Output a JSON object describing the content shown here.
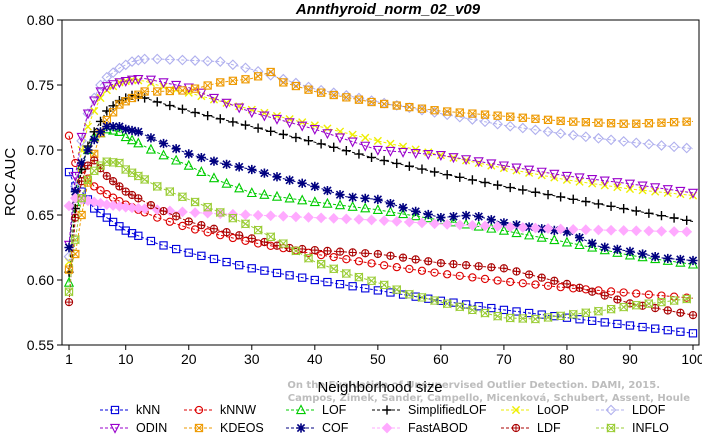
{
  "chart_data": {
    "type": "line",
    "title": "Annthyroid_norm_02_v09",
    "xlabel": "Neighborhood size",
    "ylabel": "ROC AUC",
    "xlim": [
      1,
      100
    ],
    "ylim": [
      0.55,
      0.8
    ],
    "xticks": [
      "1",
      "10",
      "20",
      "30",
      "40",
      "50",
      "60",
      "70",
      "80",
      "90",
      "100"
    ],
    "yticks": [
      "0.55",
      "0.60",
      "0.65",
      "0.70",
      "0.75",
      "0.80"
    ],
    "grid": false,
    "legend_position": "bottom",
    "watermark": "Campos, Zimek, Sander, Campello, Micenková, Schubert, Assent, Houle\nOn the Evaluation of Unsupervised Outlier Detection. DAMI, 2015.",
    "series": [
      {
        "name": "kNN",
        "color": "#0000dd",
        "marker": "square",
        "points": [
          [
            1,
            0.683
          ],
          [
            2,
            0.672
          ],
          [
            3,
            0.668
          ],
          [
            4,
            0.662
          ],
          [
            5,
            0.655
          ],
          [
            7,
            0.648
          ],
          [
            10,
            0.638
          ],
          [
            15,
            0.628
          ],
          [
            20,
            0.621
          ],
          [
            30,
            0.609
          ],
          [
            40,
            0.6
          ],
          [
            50,
            0.592
          ],
          [
            60,
            0.584
          ],
          [
            70,
            0.577
          ],
          [
            80,
            0.571
          ],
          [
            90,
            0.565
          ],
          [
            100,
            0.559
          ]
        ]
      },
      {
        "name": "kNNW",
        "color": "#dd0000",
        "marker": "circle",
        "points": [
          [
            1,
            0.711
          ],
          [
            2,
            0.69
          ],
          [
            3,
            0.685
          ],
          [
            4,
            0.678
          ],
          [
            5,
            0.672
          ],
          [
            7,
            0.666
          ],
          [
            10,
            0.658
          ],
          [
            15,
            0.648
          ],
          [
            20,
            0.64
          ],
          [
            30,
            0.629
          ],
          [
            40,
            0.62
          ],
          [
            50,
            0.612
          ],
          [
            60,
            0.605
          ],
          [
            70,
            0.599
          ],
          [
            80,
            0.594
          ],
          [
            90,
            0.59
          ],
          [
            100,
            0.586
          ]
        ]
      },
      {
        "name": "LOF",
        "color": "#00cc00",
        "marker": "triangle-up",
        "points": [
          [
            1,
            0.598
          ],
          [
            2,
            0.66
          ],
          [
            3,
            0.688
          ],
          [
            4,
            0.7
          ],
          [
            5,
            0.71
          ],
          [
            6,
            0.713
          ],
          [
            7,
            0.716
          ],
          [
            9,
            0.714
          ],
          [
            10,
            0.71
          ],
          [
            15,
            0.698
          ],
          [
            20,
            0.688
          ],
          [
            25,
            0.676
          ],
          [
            30,
            0.667
          ],
          [
            40,
            0.66
          ],
          [
            50,
            0.654
          ],
          [
            60,
            0.646
          ],
          [
            70,
            0.638
          ],
          [
            80,
            0.629
          ],
          [
            90,
            0.619
          ],
          [
            100,
            0.612
          ]
        ]
      },
      {
        "name": "SimplifiedLOF",
        "color": "#000000",
        "marker": "plus",
        "points": [
          [
            1,
            0.606
          ],
          [
            2,
            0.655
          ],
          [
            3,
            0.685
          ],
          [
            4,
            0.703
          ],
          [
            5,
            0.714
          ],
          [
            6,
            0.722
          ],
          [
            7,
            0.73
          ],
          [
            9,
            0.738
          ],
          [
            11,
            0.742
          ],
          [
            13,
            0.74
          ],
          [
            15,
            0.737
          ],
          [
            20,
            0.73
          ],
          [
            30,
            0.718
          ],
          [
            40,
            0.706
          ],
          [
            50,
            0.693
          ],
          [
            60,
            0.682
          ],
          [
            70,
            0.672
          ],
          [
            80,
            0.663
          ],
          [
            90,
            0.654
          ],
          [
            100,
            0.645
          ]
        ]
      },
      {
        "name": "LoOP",
        "color": "#eeee00",
        "marker": "x",
        "points": [
          [
            1,
            0.614
          ],
          [
            2,
            0.668
          ],
          [
            3,
            0.7
          ],
          [
            4,
            0.718
          ],
          [
            5,
            0.73
          ],
          [
            6,
            0.74
          ],
          [
            7,
            0.746
          ],
          [
            9,
            0.752
          ],
          [
            11,
            0.754
          ],
          [
            13,
            0.753
          ],
          [
            15,
            0.75
          ],
          [
            20,
            0.744
          ],
          [
            30,
            0.731
          ],
          [
            40,
            0.719
          ],
          [
            50,
            0.707
          ],
          [
            60,
            0.696
          ],
          [
            70,
            0.686
          ],
          [
            80,
            0.677
          ],
          [
            90,
            0.67
          ],
          [
            100,
            0.665
          ]
        ]
      },
      {
        "name": "LDOF",
        "color": "#b0b0ee",
        "marker": "diamond",
        "points": [
          [
            1,
            0.618
          ],
          [
            2,
            0.672
          ],
          [
            3,
            0.707
          ],
          [
            4,
            0.728
          ],
          [
            5,
            0.74
          ],
          [
            6,
            0.75
          ],
          [
            7,
            0.756
          ],
          [
            9,
            0.763
          ],
          [
            11,
            0.768
          ],
          [
            13,
            0.77
          ],
          [
            15,
            0.77
          ],
          [
            20,
            0.769
          ],
          [
            25,
            0.768
          ],
          [
            30,
            0.762
          ],
          [
            40,
            0.747
          ],
          [
            50,
            0.737
          ],
          [
            60,
            0.728
          ],
          [
            70,
            0.719
          ],
          [
            80,
            0.712
          ],
          [
            90,
            0.706
          ],
          [
            100,
            0.701
          ]
        ]
      },
      {
        "name": "ODIN",
        "color": "#9900cc",
        "marker": "triangle-down",
        "points": [
          [
            1,
            0.627
          ],
          [
            2,
            0.68
          ],
          [
            3,
            0.71
          ],
          [
            4,
            0.728
          ],
          [
            5,
            0.738
          ],
          [
            6,
            0.745
          ],
          [
            7,
            0.749
          ],
          [
            9,
            0.752
          ],
          [
            11,
            0.754
          ],
          [
            13,
            0.755
          ],
          [
            15,
            0.753
          ],
          [
            20,
            0.748
          ],
          [
            25,
            0.738
          ],
          [
            30,
            0.729
          ],
          [
            40,
            0.716
          ],
          [
            50,
            0.7
          ],
          [
            60,
            0.696
          ],
          [
            70,
            0.688
          ],
          [
            80,
            0.68
          ],
          [
            90,
            0.674
          ],
          [
            100,
            0.667
          ]
        ]
      },
      {
        "name": "KDEOS",
        "color": "#ee9900",
        "marker": "square-x",
        "points": [
          [
            1,
            0.608
          ],
          [
            2,
            0.62
          ],
          [
            3,
            0.65
          ],
          [
            4,
            0.675
          ],
          [
            5,
            0.697
          ],
          [
            6,
            0.713
          ],
          [
            7,
            0.723
          ],
          [
            9,
            0.735
          ],
          [
            11,
            0.74
          ],
          [
            13,
            0.745
          ],
          [
            15,
            0.745
          ],
          [
            20,
            0.746
          ],
          [
            25,
            0.752
          ],
          [
            30,
            0.755
          ],
          [
            33,
            0.76
          ],
          [
            35,
            0.752
          ],
          [
            40,
            0.745
          ],
          [
            50,
            0.736
          ],
          [
            60,
            0.73
          ],
          [
            70,
            0.726
          ],
          [
            80,
            0.722
          ],
          [
            90,
            0.72
          ],
          [
            100,
            0.722
          ]
        ]
      },
      {
        "name": "COF",
        "color": "#000080",
        "marker": "asterisk",
        "points": [
          [
            1,
            0.625
          ],
          [
            2,
            0.668
          ],
          [
            3,
            0.69
          ],
          [
            4,
            0.7
          ],
          [
            5,
            0.708
          ],
          [
            6,
            0.714
          ],
          [
            7,
            0.718
          ],
          [
            9,
            0.718
          ],
          [
            10,
            0.716
          ],
          [
            12,
            0.714
          ],
          [
            15,
            0.707
          ],
          [
            20,
            0.697
          ],
          [
            25,
            0.69
          ],
          [
            30,
            0.685
          ],
          [
            35,
            0.678
          ],
          [
            40,
            0.672
          ],
          [
            45,
            0.664
          ],
          [
            50,
            0.662
          ],
          [
            55,
            0.654
          ],
          [
            60,
            0.648
          ],
          [
            65,
            0.65
          ],
          [
            70,
            0.644
          ],
          [
            75,
            0.64
          ],
          [
            80,
            0.637
          ],
          [
            85,
            0.626
          ],
          [
            90,
            0.622
          ],
          [
            95,
            0.617
          ],
          [
            100,
            0.615
          ]
        ]
      },
      {
        "name": "FastABOD",
        "color": "#ffaaff",
        "marker": "diamond-filled",
        "points": [
          [
            1,
            0.657
          ],
          [
            2,
            0.663
          ],
          [
            3,
            0.662
          ],
          [
            4,
            0.661
          ],
          [
            5,
            0.66
          ],
          [
            7,
            0.658
          ],
          [
            10,
            0.656
          ],
          [
            15,
            0.654
          ],
          [
            20,
            0.652
          ],
          [
            30,
            0.65
          ],
          [
            40,
            0.648
          ],
          [
            50,
            0.646
          ],
          [
            60,
            0.643
          ],
          [
            70,
            0.641
          ],
          [
            80,
            0.639
          ],
          [
            90,
            0.638
          ],
          [
            100,
            0.637
          ]
        ]
      },
      {
        "name": "LDF",
        "color": "#aa0000",
        "marker": "circle-plus",
        "points": [
          [
            1,
            0.583
          ],
          [
            2,
            0.648
          ],
          [
            3,
            0.676
          ],
          [
            4,
            0.688
          ],
          [
            5,
            0.692
          ],
          [
            7,
            0.68
          ],
          [
            10,
            0.668
          ],
          [
            15,
            0.655
          ],
          [
            20,
            0.645
          ],
          [
            25,
            0.638
          ],
          [
            30,
            0.632
          ],
          [
            35,
            0.625
          ],
          [
            40,
            0.623
          ],
          [
            50,
            0.62
          ],
          [
            60,
            0.613
          ],
          [
            70,
            0.609
          ],
          [
            80,
            0.597
          ],
          [
            90,
            0.582
          ],
          [
            100,
            0.573
          ]
        ]
      },
      {
        "name": "INFLO",
        "color": "#99cc33",
        "marker": "hourglass",
        "points": [
          [
            1,
            0.591
          ],
          [
            2,
            0.631
          ],
          [
            3,
            0.663
          ],
          [
            4,
            0.677
          ],
          [
            5,
            0.684
          ],
          [
            6,
            0.688
          ],
          [
            7,
            0.691
          ],
          [
            9,
            0.69
          ],
          [
            10,
            0.685
          ],
          [
            12,
            0.68
          ],
          [
            15,
            0.672
          ],
          [
            20,
            0.662
          ],
          [
            25,
            0.652
          ],
          [
            30,
            0.641
          ],
          [
            35,
            0.628
          ],
          [
            40,
            0.614
          ],
          [
            45,
            0.605
          ],
          [
            50,
            0.598
          ],
          [
            55,
            0.589
          ],
          [
            60,
            0.583
          ],
          [
            65,
            0.577
          ],
          [
            70,
            0.571
          ],
          [
            75,
            0.57
          ],
          [
            80,
            0.573
          ],
          [
            85,
            0.576
          ],
          [
            90,
            0.58
          ],
          [
            95,
            0.583
          ],
          [
            100,
            0.586
          ]
        ]
      }
    ]
  }
}
